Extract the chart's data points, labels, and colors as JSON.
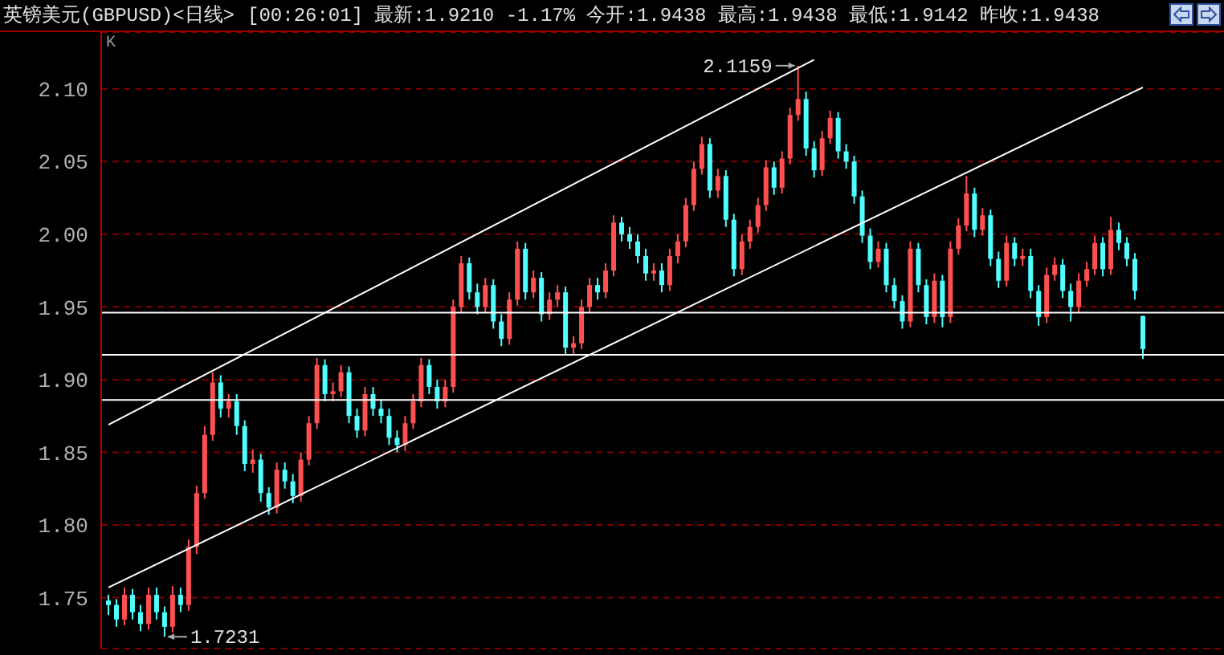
{
  "chart_data": {
    "type": "candlestick",
    "title": "英镑美元(GBPUSD)<日线>",
    "subtitle": "[00:26:01] 最新:1.9210 -1.17% 今开:1.9438 最高:1.9438 最低:1.9142 昨收:1.9438",
    "categories": [
      null,
      null,
      null,
      null,
      null,
      null,
      null,
      null,
      null,
      null,
      null,
      null,
      null,
      null,
      null,
      null,
      null,
      null,
      null,
      null,
      null,
      null,
      null,
      null,
      null,
      null,
      null,
      null,
      null,
      null,
      null,
      null,
      null,
      null,
      null,
      null,
      null,
      null,
      null,
      null,
      null,
      null,
      null,
      null,
      null,
      null,
      null,
      null,
      null,
      null,
      null,
      null,
      null,
      null,
      null,
      null,
      null,
      null,
      null,
      null,
      null,
      null,
      null,
      null,
      null,
      null,
      null,
      null,
      null,
      null,
      null,
      null,
      null,
      null,
      null,
      null,
      null,
      null,
      null,
      null,
      null,
      null,
      null,
      null,
      null,
      null,
      null,
      null,
      null,
      null,
      null,
      null,
      null,
      null,
      null,
      null,
      null,
      null,
      null,
      null,
      null,
      null,
      null,
      null,
      null,
      null,
      null,
      null,
      null,
      null,
      null,
      null,
      null,
      null,
      null,
      null,
      null,
      null,
      null,
      null,
      null,
      null,
      null,
      null,
      null,
      null,
      null,
      null,
      null,
      null
    ],
    "ohlc": [
      [
        1.748,
        1.752,
        1.738,
        1.745
      ],
      [
        1.745,
        1.749,
        1.73,
        1.735
      ],
      [
        1.735,
        1.757,
        1.731,
        1.752
      ],
      [
        1.752,
        1.756,
        1.735,
        1.74
      ],
      [
        1.74,
        1.745,
        1.727,
        1.732
      ],
      [
        1.732,
        1.757,
        1.728,
        1.752
      ],
      [
        1.752,
        1.757,
        1.735,
        1.74
      ],
      [
        1.74,
        1.744,
        1.7231,
        1.73
      ],
      [
        1.73,
        1.758,
        1.726,
        1.752
      ],
      [
        1.752,
        1.757,
        1.74,
        1.745
      ],
      [
        1.745,
        1.79,
        1.741,
        1.785
      ],
      [
        1.785,
        1.827,
        1.78,
        1.822
      ],
      [
        1.822,
        1.868,
        1.818,
        1.862
      ],
      [
        1.862,
        1.905,
        1.858,
        1.898
      ],
      [
        1.898,
        1.903,
        1.874,
        1.88
      ],
      [
        1.88,
        1.89,
        1.874,
        1.885
      ],
      [
        1.885,
        1.89,
        1.862,
        1.868
      ],
      [
        1.868,
        1.872,
        1.837,
        1.842
      ],
      [
        1.842,
        1.852,
        1.836,
        1.845
      ],
      [
        1.845,
        1.849,
        1.816,
        1.822
      ],
      [
        1.822,
        1.826,
        1.807,
        1.812
      ],
      [
        1.812,
        1.843,
        1.808,
        1.838
      ],
      [
        1.838,
        1.843,
        1.825,
        1.83
      ],
      [
        1.83,
        1.835,
        1.815,
        1.82
      ],
      [
        1.82,
        1.85,
        1.816,
        1.845
      ],
      [
        1.845,
        1.875,
        1.841,
        1.87
      ],
      [
        1.87,
        1.915,
        1.866,
        1.91
      ],
      [
        1.91,
        1.914,
        1.885,
        1.89
      ],
      [
        1.89,
        1.898,
        1.885,
        1.892
      ],
      [
        1.892,
        1.91,
        1.888,
        1.905
      ],
      [
        1.905,
        1.909,
        1.87,
        1.875
      ],
      [
        1.875,
        1.88,
        1.86,
        1.865
      ],
      [
        1.865,
        1.895,
        1.861,
        1.89
      ],
      [
        1.89,
        1.895,
        1.875,
        1.88
      ],
      [
        1.88,
        1.886,
        1.87,
        1.875
      ],
      [
        1.875,
        1.88,
        1.855,
        1.86
      ],
      [
        1.86,
        1.865,
        1.85,
        1.855
      ],
      [
        1.855,
        1.875,
        1.851,
        1.87
      ],
      [
        1.87,
        1.89,
        1.866,
        1.885
      ],
      [
        1.885,
        1.915,
        1.881,
        1.91
      ],
      [
        1.91,
        1.914,
        1.89,
        1.895
      ],
      [
        1.895,
        1.9,
        1.88,
        1.885
      ],
      [
        1.885,
        1.9,
        1.881,
        1.895
      ],
      [
        1.895,
        1.955,
        1.891,
        1.95
      ],
      [
        1.95,
        1.985,
        1.946,
        1.98
      ],
      [
        1.98,
        1.984,
        1.955,
        1.96
      ],
      [
        1.96,
        1.966,
        1.945,
        1.95
      ],
      [
        1.95,
        1.97,
        1.946,
        1.965
      ],
      [
        1.965,
        1.969,
        1.935,
        1.94
      ],
      [
        1.94,
        1.945,
        1.923,
        1.928
      ],
      [
        1.928,
        1.96,
        1.924,
        1.955
      ],
      [
        1.955,
        1.995,
        1.951,
        1.99
      ],
      [
        1.99,
        1.994,
        1.955,
        1.96
      ],
      [
        1.96,
        1.975,
        1.956,
        1.97
      ],
      [
        1.97,
        1.974,
        1.94,
        1.945
      ],
      [
        1.945,
        1.96,
        1.941,
        1.955
      ],
      [
        1.955,
        1.965,
        1.95,
        1.96
      ],
      [
        1.96,
        1.964,
        1.917,
        1.922
      ],
      [
        1.922,
        1.93,
        1.917,
        1.925
      ],
      [
        1.925,
        1.955,
        1.921,
        1.95
      ],
      [
        1.95,
        1.97,
        1.946,
        1.965
      ],
      [
        1.965,
        1.97,
        1.955,
        1.96
      ],
      [
        1.96,
        1.98,
        1.956,
        1.975
      ],
      [
        1.975,
        2.013,
        1.971,
        2.008
      ],
      [
        2.008,
        2.012,
        1.995,
        2.0
      ],
      [
        2.0,
        2.005,
        1.99,
        1.995
      ],
      [
        1.995,
        2.0,
        1.98,
        1.985
      ],
      [
        1.985,
        1.99,
        1.968,
        1.973
      ],
      [
        1.973,
        1.98,
        1.968,
        1.975
      ],
      [
        1.975,
        1.98,
        1.96,
        1.965
      ],
      [
        1.965,
        1.99,
        1.961,
        1.985
      ],
      [
        1.985,
        2.0,
        1.98,
        1.995
      ],
      [
        1.995,
        2.025,
        1.991,
        2.02
      ],
      [
        2.02,
        2.05,
        2.016,
        2.045
      ],
      [
        2.045,
        2.067,
        2.041,
        2.062
      ],
      [
        2.062,
        2.066,
        2.025,
        2.03
      ],
      [
        2.03,
        2.045,
        2.025,
        2.04
      ],
      [
        2.04,
        2.044,
        2.005,
        2.01
      ],
      [
        2.01,
        2.014,
        1.971,
        1.976
      ],
      [
        1.976,
        2.0,
        1.972,
        1.995
      ],
      [
        1.995,
        2.01,
        1.99,
        2.005
      ],
      [
        2.005,
        2.025,
        2.001,
        2.02
      ],
      [
        2.02,
        2.051,
        2.016,
        2.046
      ],
      [
        2.046,
        2.05,
        2.027,
        2.032
      ],
      [
        2.032,
        2.057,
        2.028,
        2.052
      ],
      [
        2.052,
        2.087,
        2.048,
        2.082
      ],
      [
        2.082,
        2.1159,
        2.078,
        2.093
      ],
      [
        2.093,
        2.098,
        2.054,
        2.059
      ],
      [
        2.059,
        2.064,
        2.039,
        2.044
      ],
      [
        2.044,
        2.071,
        2.04,
        2.066
      ],
      [
        2.066,
        2.085,
        2.062,
        2.08
      ],
      [
        2.08,
        2.084,
        2.052,
        2.057
      ],
      [
        2.057,
        2.062,
        2.045,
        2.05
      ],
      [
        2.05,
        2.054,
        2.021,
        2.026
      ],
      [
        2.026,
        2.03,
        1.994,
        1.999
      ],
      [
        1.999,
        2.004,
        1.976,
        1.981
      ],
      [
        1.981,
        1.995,
        1.977,
        1.99
      ],
      [
        1.99,
        1.994,
        1.96,
        1.965
      ],
      [
        1.965,
        1.97,
        1.949,
        1.954
      ],
      [
        1.954,
        1.958,
        1.935,
        1.94
      ],
      [
        1.94,
        1.995,
        1.936,
        1.99
      ],
      [
        1.99,
        1.994,
        1.96,
        1.965
      ],
      [
        1.965,
        1.969,
        1.938,
        1.943
      ],
      [
        1.943,
        1.973,
        1.939,
        1.968
      ],
      [
        1.968,
        1.972,
        1.936,
        1.943
      ],
      [
        1.943,
        1.995,
        1.939,
        1.99
      ],
      [
        1.99,
        2.011,
        1.986,
        2.006
      ],
      [
        2.006,
        2.04,
        2.002,
        2.028
      ],
      [
        2.028,
        2.032,
        1.998,
        2.003
      ],
      [
        2.003,
        2.018,
        1.999,
        2.013
      ],
      [
        2.013,
        2.017,
        1.978,
        1.983
      ],
      [
        1.983,
        1.988,
        1.963,
        1.968
      ],
      [
        1.968,
        1.999,
        1.964,
        1.994
      ],
      [
        1.994,
        1.998,
        1.978,
        1.983
      ],
      [
        1.983,
        1.99,
        1.978,
        1.985
      ],
      [
        1.985,
        1.99,
        1.956,
        1.961
      ],
      [
        1.961,
        1.965,
        1.937,
        1.943
      ],
      [
        1.943,
        1.977,
        1.939,
        1.972
      ],
      [
        1.972,
        1.984,
        1.968,
        1.979
      ],
      [
        1.979,
        1.983,
        1.956,
        1.961
      ],
      [
        1.961,
        1.966,
        1.94,
        1.95
      ],
      [
        1.95,
        1.973,
        1.946,
        1.968
      ],
      [
        1.968,
        1.981,
        1.964,
        1.976
      ],
      [
        1.976,
        1.999,
        1.972,
        1.994
      ],
      [
        1.994,
        1.998,
        1.971,
        1.976
      ],
      [
        1.976,
        2.012,
        1.972,
        2.003
      ],
      [
        2.003,
        2.008,
        1.989,
        1.994
      ],
      [
        1.994,
        1.998,
        1.978,
        1.983
      ],
      [
        1.983,
        1.987,
        1.955,
        1.961
      ],
      [
        1.9438,
        1.9438,
        1.9142,
        1.921
      ]
    ],
    "colors": [
      "#50ffff",
      "#50ffff",
      "#ff5050",
      "#50ffff",
      "#50ffff",
      "#ff5050",
      "#50ffff",
      "#50ffff",
      "#ff5050",
      "#50ffff",
      "#ff5050",
      "#ff5050",
      "#ff5050",
      "#ff5050",
      "#50ffff",
      "#ff5050",
      "#50ffff",
      "#50ffff",
      "#ff5050",
      "#50ffff",
      "#50ffff",
      "#ff5050",
      "#50ffff",
      "#50ffff",
      "#ff5050",
      "#ff5050",
      "#ff5050",
      "#50ffff",
      "#ff5050",
      "#ff5050",
      "#50ffff",
      "#50ffff",
      "#ff5050",
      "#50ffff",
      "#50ffff",
      "#50ffff",
      "#50ffff",
      "#ff5050",
      "#ff5050",
      "#ff5050",
      "#50ffff",
      "#50ffff",
      "#ff5050",
      "#ff5050",
      "#ff5050",
      "#50ffff",
      "#50ffff",
      "#ff5050",
      "#50ffff",
      "#50ffff",
      "#ff5050",
      "#ff5050",
      "#50ffff",
      "#ff5050",
      "#50ffff",
      "#ff5050",
      "#ff5050",
      "#50ffff",
      "#ff5050",
      "#ff5050",
      "#ff5050",
      "#50ffff",
      "#ff5050",
      "#ff5050",
      "#50ffff",
      "#50ffff",
      "#50ffff",
      "#50ffff",
      "#ff5050",
      "#50ffff",
      "#ff5050",
      "#ff5050",
      "#ff5050",
      "#ff5050",
      "#ff5050",
      "#50ffff",
      "#ff5050",
      "#50ffff",
      "#50ffff",
      "#ff5050",
      "#ff5050",
      "#ff5050",
      "#ff5050",
      "#50ffff",
      "#ff5050",
      "#ff5050",
      "#ff5050",
      "#50ffff",
      "#50ffff",
      "#ff5050",
      "#ff5050",
      "#50ffff",
      "#50ffff",
      "#50ffff",
      "#50ffff",
      "#50ffff",
      "#ff5050",
      "#50ffff",
      "#50ffff",
      "#50ffff",
      "#ff5050",
      "#50ffff",
      "#50ffff",
      "#ff5050",
      "#50ffff",
      "#ff5050",
      "#ff5050",
      "#ff5050",
      "#50ffff",
      "#ff5050",
      "#50ffff",
      "#50ffff",
      "#ff5050",
      "#50ffff",
      "#ff5050",
      "#50ffff",
      "#50ffff",
      "#ff5050",
      "#ff5050",
      "#50ffff",
      "#50ffff",
      "#ff5050",
      "#ff5050",
      "#ff5050",
      "#50ffff",
      "#ff5050",
      "#50ffff",
      "#50ffff",
      "#50ffff",
      "#50ffff"
    ],
    "series": [
      {
        "type": "line",
        "color": "#ffffff",
        "values": [
          1.869,
          null,
          null,
          null,
          null,
          null,
          null,
          null,
          null,
          null,
          null,
          null,
          null,
          null,
          null,
          null,
          null,
          null,
          null,
          null,
          null,
          null,
          null,
          null,
          null,
          null,
          null,
          null,
          null,
          null,
          null,
          null,
          null,
          null,
          null,
          null,
          null,
          null,
          null,
          null,
          null,
          null,
          null,
          null,
          null,
          null,
          null,
          null,
          null,
          null,
          null,
          null,
          null,
          null,
          null,
          null,
          null,
          null,
          null,
          null,
          null,
          null,
          null,
          null,
          null,
          null,
          null,
          null,
          null,
          null,
          null,
          null,
          null,
          null,
          null,
          null,
          null,
          null,
          null,
          null,
          null,
          null,
          null,
          null,
          null,
          null,
          null,
          null,
          2.12,
          null,
          null,
          null,
          null,
          null,
          null,
          null,
          null,
          null,
          null,
          null,
          null,
          null,
          null,
          null,
          null,
          null,
          null,
          null,
          null,
          null,
          null,
          null,
          null,
          null,
          null,
          null,
          null,
          null,
          null,
          null,
          null,
          null,
          null,
          null,
          null,
          null,
          null,
          null,
          null,
          null
        ]
      },
      {
        "type": "line",
        "color": "#ffffff",
        "values": [
          1.757,
          null,
          null,
          null,
          null,
          null,
          null,
          null,
          null,
          null,
          null,
          null,
          null,
          null,
          null,
          null,
          null,
          null,
          null,
          null,
          null,
          null,
          null,
          null,
          null,
          null,
          null,
          null,
          null,
          null,
          null,
          null,
          null,
          null,
          null,
          null,
          null,
          null,
          null,
          null,
          null,
          null,
          null,
          null,
          null,
          null,
          null,
          null,
          null,
          null,
          null,
          null,
          null,
          null,
          null,
          null,
          null,
          null,
          null,
          null,
          null,
          null,
          null,
          null,
          null,
          null,
          null,
          null,
          null,
          null,
          null,
          null,
          null,
          null,
          null,
          null,
          null,
          null,
          null,
          null,
          null,
          null,
          null,
          null,
          null,
          null,
          null,
          null,
          null,
          null,
          null,
          null,
          null,
          null,
          null,
          null,
          null,
          null,
          null,
          null,
          null,
          null,
          null,
          null,
          null,
          null,
          null,
          null,
          null,
          null,
          null,
          null,
          null,
          null,
          null,
          null,
          null,
          null,
          null,
          null,
          null,
          null,
          null,
          null,
          null,
          null,
          null,
          null,
          null,
          2.101
        ]
      }
    ],
    "ylim": [
      1.715,
      2.139
    ],
    "yticks": [
      {
        "value": 1.75,
        "label": "1.75"
      },
      {
        "value": 1.8,
        "label": "1.80"
      },
      {
        "value": 1.85,
        "label": "1.85"
      },
      {
        "value": 1.9,
        "label": "1.90"
      },
      {
        "value": 1.95,
        "label": "1.95"
      },
      {
        "value": 2.0,
        "label": "2.00"
      },
      {
        "value": 2.05,
        "label": "2.05"
      },
      {
        "value": 2.1,
        "label": "2.10"
      }
    ],
    "ref_lines": [
      {
        "axis": "y",
        "value": 1.946,
        "color": "#ffffff"
      },
      {
        "axis": "y",
        "value": 1.917,
        "color": "#ffffff"
      },
      {
        "axis": "y",
        "value": 1.886,
        "color": "#ffffff"
      }
    ],
    "annotations": [
      "K",
      "2.1159",
      "1.7231"
    ],
    "grid": "y",
    "marker": "none"
  }
}
